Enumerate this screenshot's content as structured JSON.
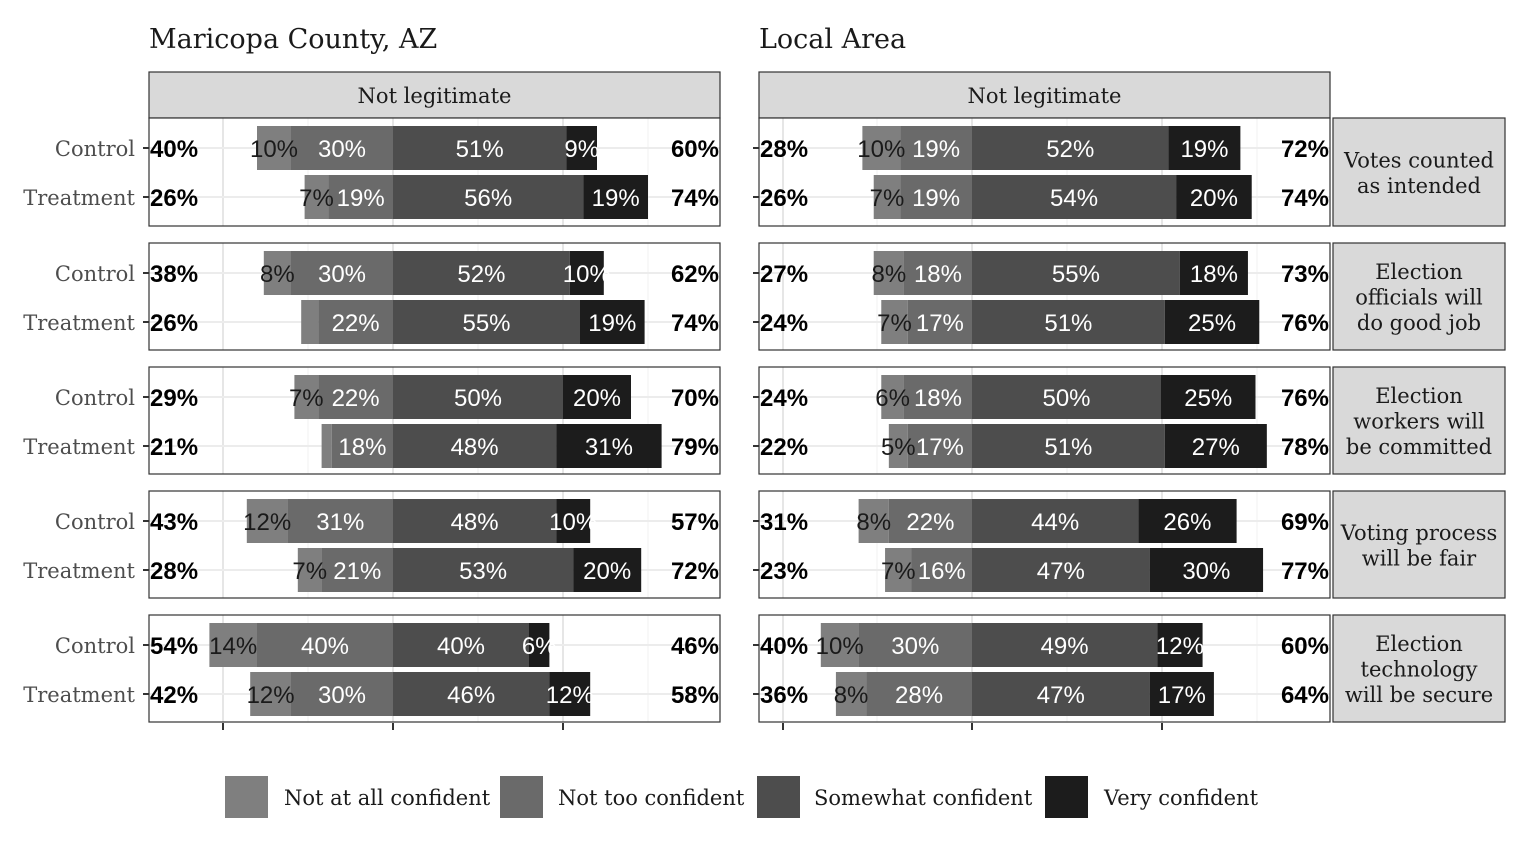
{
  "chart_data": {
    "type": "bar",
    "subtype": "diverging-stacked-100",
    "facet_column_header": "Not legitimate",
    "row_labels": [
      "Control",
      "Treatment"
    ],
    "legend": {
      "position": "bottom",
      "items": [
        {
          "label": "Not at all confident",
          "color": "#7f7f7f"
        },
        {
          "label": "Not too confident",
          "color": "#6a6a6a"
        },
        {
          "label": "Somewhat confident",
          "color": "#4d4d4d"
        },
        {
          "label": "Very confident",
          "color": "#1c1c1c"
        }
      ]
    },
    "panels": [
      {
        "title": "Maricopa County, AZ",
        "groups": [
          {
            "strip": [
              "Votes counted",
              "as intended"
            ],
            "rows": [
              {
                "label": "Control",
                "left_total": "40%",
                "right_total": "60%",
                "values": [
                  10,
                  30,
                  51,
                  9
                ]
              },
              {
                "label": "Treatment",
                "left_total": "26%",
                "right_total": "74%",
                "values": [
                  7,
                  19,
                  56,
                  19
                ]
              }
            ]
          },
          {
            "strip": [
              "Election",
              "officials will",
              "do good job"
            ],
            "rows": [
              {
                "label": "Control",
                "left_total": "38%",
                "right_total": "62%",
                "values": [
                  8,
                  30,
                  52,
                  10
                ]
              },
              {
                "label": "Treatment",
                "left_total": "26%",
                "right_total": "74%",
                "values": [
                  5,
                  22,
                  55,
                  19
                ]
              }
            ]
          },
          {
            "strip": [
              "Election",
              "workers will",
              "be committed"
            ],
            "rows": [
              {
                "label": "Control",
                "left_total": "29%",
                "right_total": "70%",
                "values": [
                  7,
                  22,
                  50,
                  20
                ]
              },
              {
                "label": "Treatment",
                "left_total": "21%",
                "right_total": "79%",
                "values": [
                  3,
                  18,
                  48,
                  31
                ]
              }
            ]
          },
          {
            "strip": [
              "Voting process",
              "will be fair"
            ],
            "rows": [
              {
                "label": "Control",
                "left_total": "43%",
                "right_total": "57%",
                "values": [
                  12,
                  31,
                  48,
                  10
                ]
              },
              {
                "label": "Treatment",
                "left_total": "28%",
                "right_total": "72%",
                "values": [
                  7,
                  21,
                  53,
                  20
                ]
              }
            ]
          },
          {
            "strip": [
              "Election",
              "technology",
              "will be secure"
            ],
            "rows": [
              {
                "label": "Control",
                "left_total": "54%",
                "right_total": "46%",
                "values": [
                  14,
                  40,
                  40,
                  6
                ]
              },
              {
                "label": "Treatment",
                "left_total": "42%",
                "right_total": "58%",
                "values": [
                  12,
                  30,
                  46,
                  12
                ]
              }
            ]
          }
        ]
      },
      {
        "title": "Local Area",
        "groups": [
          {
            "rows": [
              {
                "label": "Control",
                "left_total": "28%",
                "right_total": "72%",
                "values": [
                  10,
                  19,
                  52,
                  19
                ]
              },
              {
                "label": "Treatment",
                "left_total": "26%",
                "right_total": "74%",
                "values": [
                  7,
                  19,
                  54,
                  20
                ]
              }
            ]
          },
          {
            "rows": [
              {
                "label": "Control",
                "left_total": "27%",
                "right_total": "73%",
                "values": [
                  8,
                  18,
                  55,
                  18
                ]
              },
              {
                "label": "Treatment",
                "left_total": "24%",
                "right_total": "76%",
                "values": [
                  7,
                  17,
                  51,
                  25
                ]
              }
            ]
          },
          {
            "rows": [
              {
                "label": "Control",
                "left_total": "24%",
                "right_total": "76%",
                "values": [
                  6,
                  18,
                  50,
                  25
                ]
              },
              {
                "label": "Treatment",
                "left_total": "22%",
                "right_total": "78%",
                "values": [
                  5,
                  17,
                  51,
                  27
                ]
              }
            ]
          },
          {
            "rows": [
              {
                "label": "Control",
                "left_total": "31%",
                "right_total": "69%",
                "values": [
                  8,
                  22,
                  44,
                  26
                ]
              },
              {
                "label": "Treatment",
                "left_total": "23%",
                "right_total": "77%",
                "values": [
                  7,
                  16,
                  47,
                  30
                ]
              }
            ]
          },
          {
            "rows": [
              {
                "label": "Control",
                "left_total": "40%",
                "right_total": "60%",
                "values": [
                  10,
                  30,
                  49,
                  12
                ]
              },
              {
                "label": "Treatment",
                "left_total": "36%",
                "right_total": "64%",
                "values": [
                  8,
                  28,
                  47,
                  17
                ]
              }
            ]
          }
        ]
      }
    ],
    "hidden_segment_labels": [
      [
        "Maricopa County, AZ",
        1,
        "Treatment",
        0
      ],
      [
        "Maricopa County, AZ",
        2,
        "Treatment",
        0
      ]
    ]
  }
}
